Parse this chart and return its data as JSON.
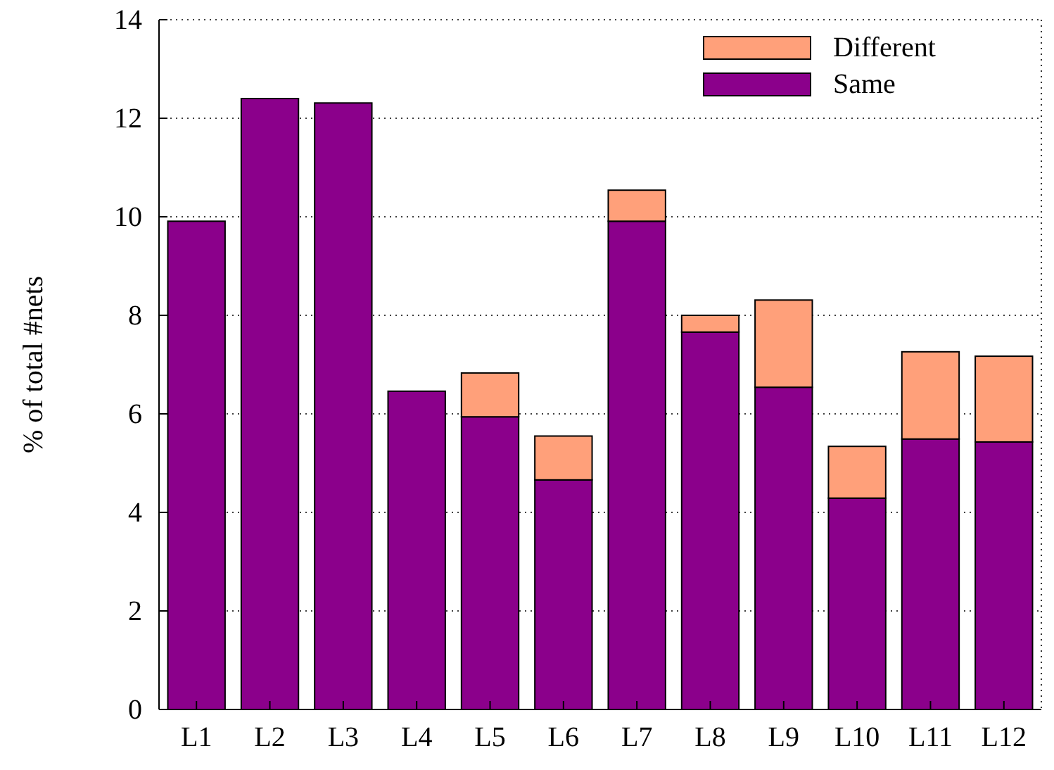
{
  "chart_data": {
    "type": "bar",
    "ylabel": "% of total #nets",
    "categories": [
      "L1",
      "L2",
      "L3",
      "L4",
      "L5",
      "L6",
      "L7",
      "L8",
      "L9",
      "L10",
      "L11",
      "L12"
    ],
    "stacked": true,
    "series": [
      {
        "name": "Same",
        "color": "#8b008b",
        "values": [
          9.91,
          12.4,
          12.31,
          6.46,
          5.94,
          4.66,
          9.91,
          7.66,
          6.54,
          4.29,
          5.49,
          5.43
        ]
      },
      {
        "name": "Different",
        "color": "#ffa07a",
        "values": [
          0,
          0,
          0,
          0,
          0.89,
          0.89,
          0.63,
          0.34,
          1.77,
          1.05,
          1.77,
          1.74
        ]
      }
    ],
    "ylim": [
      0,
      14
    ],
    "yticks": [
      0,
      2,
      4,
      6,
      8,
      10,
      12,
      14
    ],
    "grid": "y",
    "legend": "top right"
  }
}
